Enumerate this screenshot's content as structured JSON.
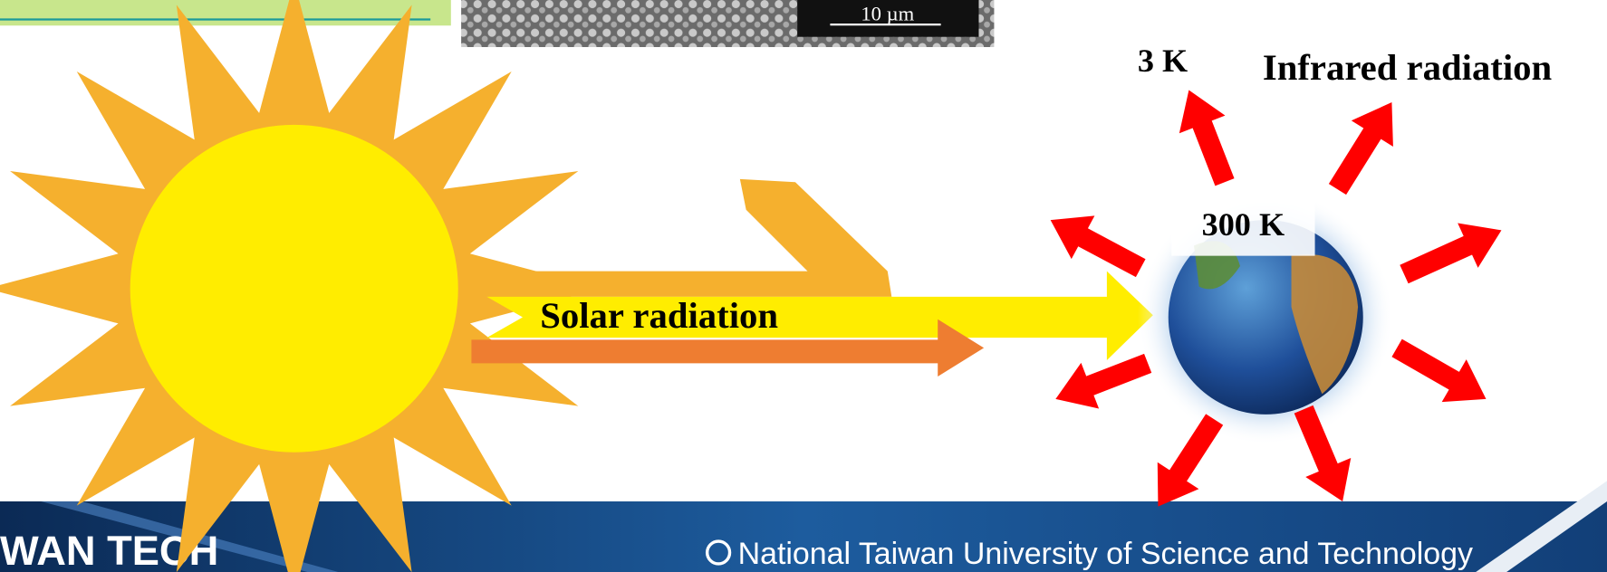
{
  "scale_bar": "10 µm",
  "labels": {
    "space_temp": "3 K",
    "infrared": "Infrared radiation",
    "earth_temp": "300 K",
    "solar": "Solar radiation"
  },
  "footer": {
    "logo": "WAN TECH",
    "university": "National Taiwan University of Science and Technology"
  }
}
